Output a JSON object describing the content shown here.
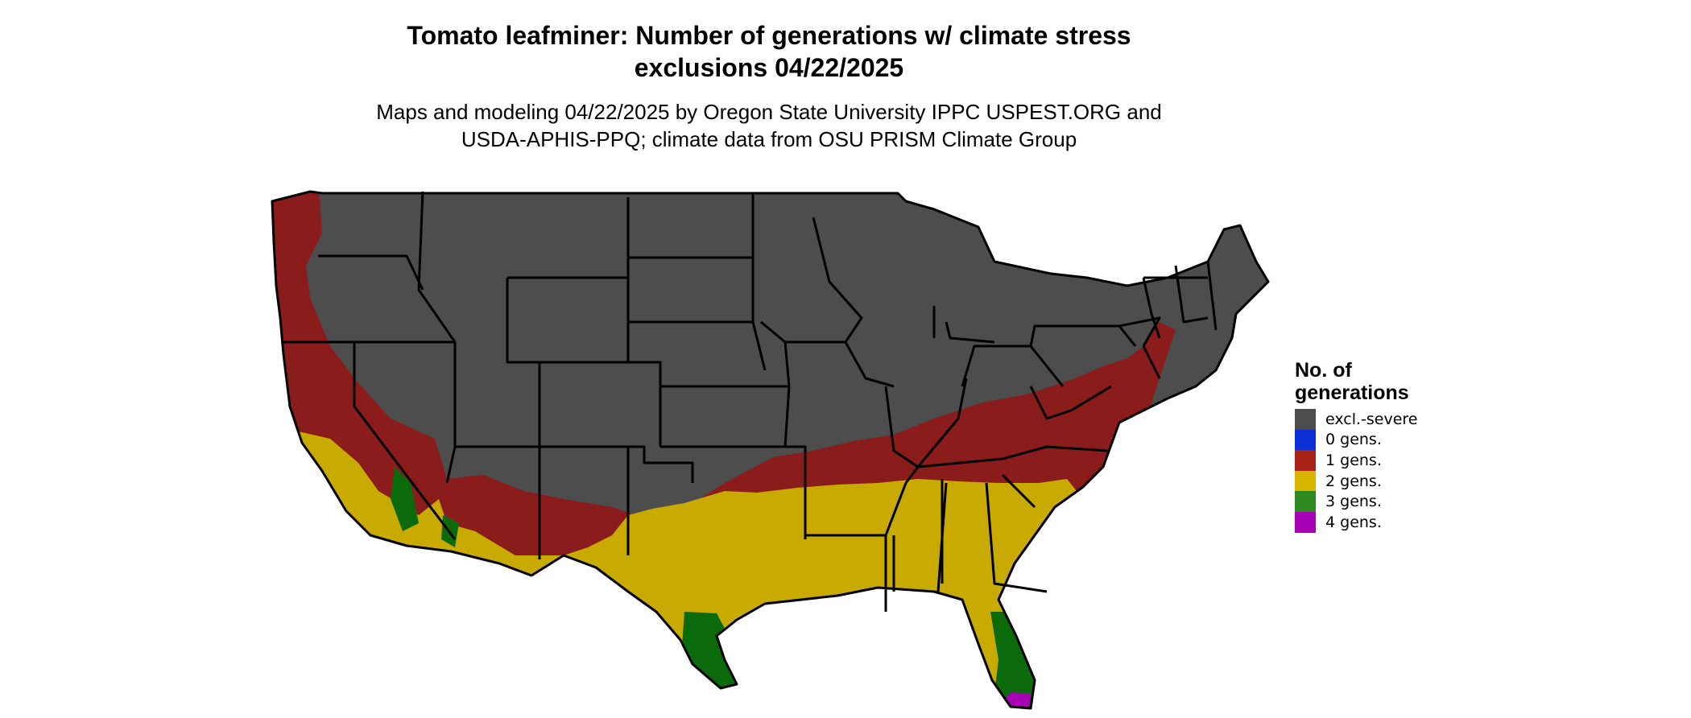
{
  "title": {
    "line1": "Tomato leafminer: Number of generations w/ climate stress",
    "line2": "exclusions 04/22/2025"
  },
  "subtitle": {
    "line1": "Maps and modeling 04/22/2025 by Oregon State University IPPC USPEST.ORG and",
    "line2": "USDA-APHIS-PPQ; climate data from OSU PRISM Climate Group"
  },
  "legend": {
    "title_line1": "No. of",
    "title_line2": "generations",
    "items": [
      {
        "label": "excl.-severe",
        "color": "#4d4d4d"
      },
      {
        "label": "0 gens.",
        "color": "#0a2fd6"
      },
      {
        "label": "1 gens.",
        "color": "#a82318"
      },
      {
        "label": "2 gens.",
        "color": "#d6b400"
      },
      {
        "label": "3 gens.",
        "color": "#2e8a1e"
      },
      {
        "label": "4 gens.",
        "color": "#a800b5"
      }
    ]
  },
  "map_colors": {
    "excluded": "#4d4d4d",
    "one_gen": "#8b1c1c",
    "two_gen": "#c9aa00",
    "three_gen": "#0b6b0b",
    "four_gen": "#a800b5",
    "border": "#000000"
  }
}
